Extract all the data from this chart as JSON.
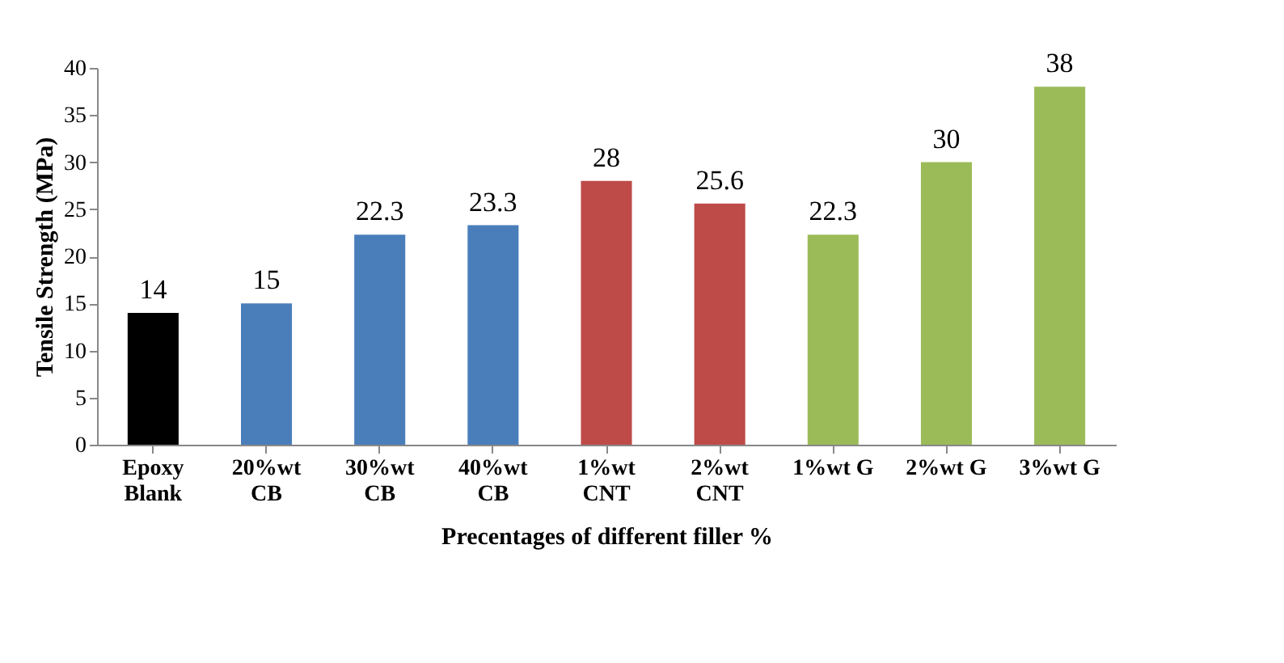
{
  "chart_data": {
    "type": "bar",
    "xlabel": "Precentages of different filler %",
    "ylabel": "Tensile Strength (MPa)",
    "categories": [
      "Epoxy Blank",
      "20%wt CB",
      "30%wt CB",
      "40%wt CB",
      "1%wt CNT",
      "2%wt CNT",
      "1%wt G",
      "2%wt G",
      "3%wt G"
    ],
    "values": [
      14,
      15,
      22.3,
      23.3,
      28,
      25.6,
      22.3,
      30,
      38
    ],
    "colors": [
      "#000000",
      "#4a7ebb",
      "#4a7ebb",
      "#4a7ebb",
      "#be4b48",
      "#be4b48",
      "#9bbb59",
      "#9bbb59",
      "#9bbb59"
    ],
    "ylim": [
      0,
      40
    ],
    "yticks": [
      0,
      5,
      10,
      15,
      20,
      25,
      30,
      35,
      40
    ],
    "grid": false,
    "data_labels": true
  }
}
